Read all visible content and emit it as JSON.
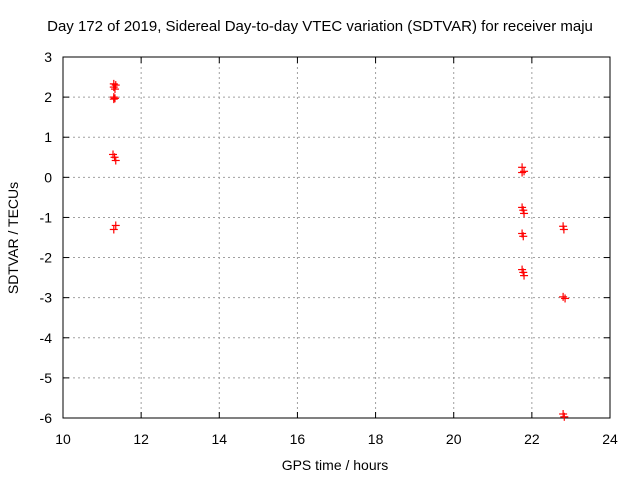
{
  "chart_data": {
    "type": "scatter",
    "title": "Day 172 of 2019, Sidereal Day-to-day VTEC variation (SDTVAR) for receiver maju",
    "xlabel": "GPS time / hours",
    "ylabel": "SDTVAR / TECUs",
    "xlim": [
      10,
      24
    ],
    "ylim": [
      -6,
      3
    ],
    "xticks": [
      "10",
      "12",
      "14",
      "16",
      "18",
      "20",
      "22",
      "24"
    ],
    "yticks": [
      "-6",
      "-5",
      "-4",
      "-3",
      "-2",
      "-1",
      "0",
      "1",
      "2",
      "3"
    ],
    "grid": true,
    "marker": "+",
    "color": "#ff0000",
    "series": [
      {
        "points": [
          [
            11.3,
            2.33
          ],
          [
            11.35,
            2.3
          ],
          [
            11.3,
            2.25
          ],
          [
            11.33,
            2.2
          ],
          [
            11.3,
            2.0
          ],
          [
            11.33,
            1.97
          ],
          [
            11.3,
            1.95
          ],
          [
            11.28,
            0.57
          ],
          [
            11.32,
            0.5
          ],
          [
            11.35,
            0.42
          ],
          [
            11.35,
            -1.2
          ],
          [
            11.3,
            -1.3
          ],
          [
            21.75,
            0.25
          ],
          [
            21.8,
            0.15
          ],
          [
            21.75,
            0.12
          ],
          [
            21.75,
            -0.75
          ],
          [
            21.78,
            -0.82
          ],
          [
            21.8,
            -0.9
          ],
          [
            21.75,
            -1.4
          ],
          [
            21.78,
            -1.47
          ],
          [
            21.75,
            -2.3
          ],
          [
            21.78,
            -2.37
          ],
          [
            21.8,
            -2.45
          ],
          [
            22.8,
            -1.22
          ],
          [
            22.82,
            -1.3
          ],
          [
            22.8,
            -2.98
          ],
          [
            22.85,
            -3.02
          ],
          [
            22.8,
            -5.9
          ],
          [
            22.83,
            -5.97
          ]
        ]
      }
    ]
  }
}
